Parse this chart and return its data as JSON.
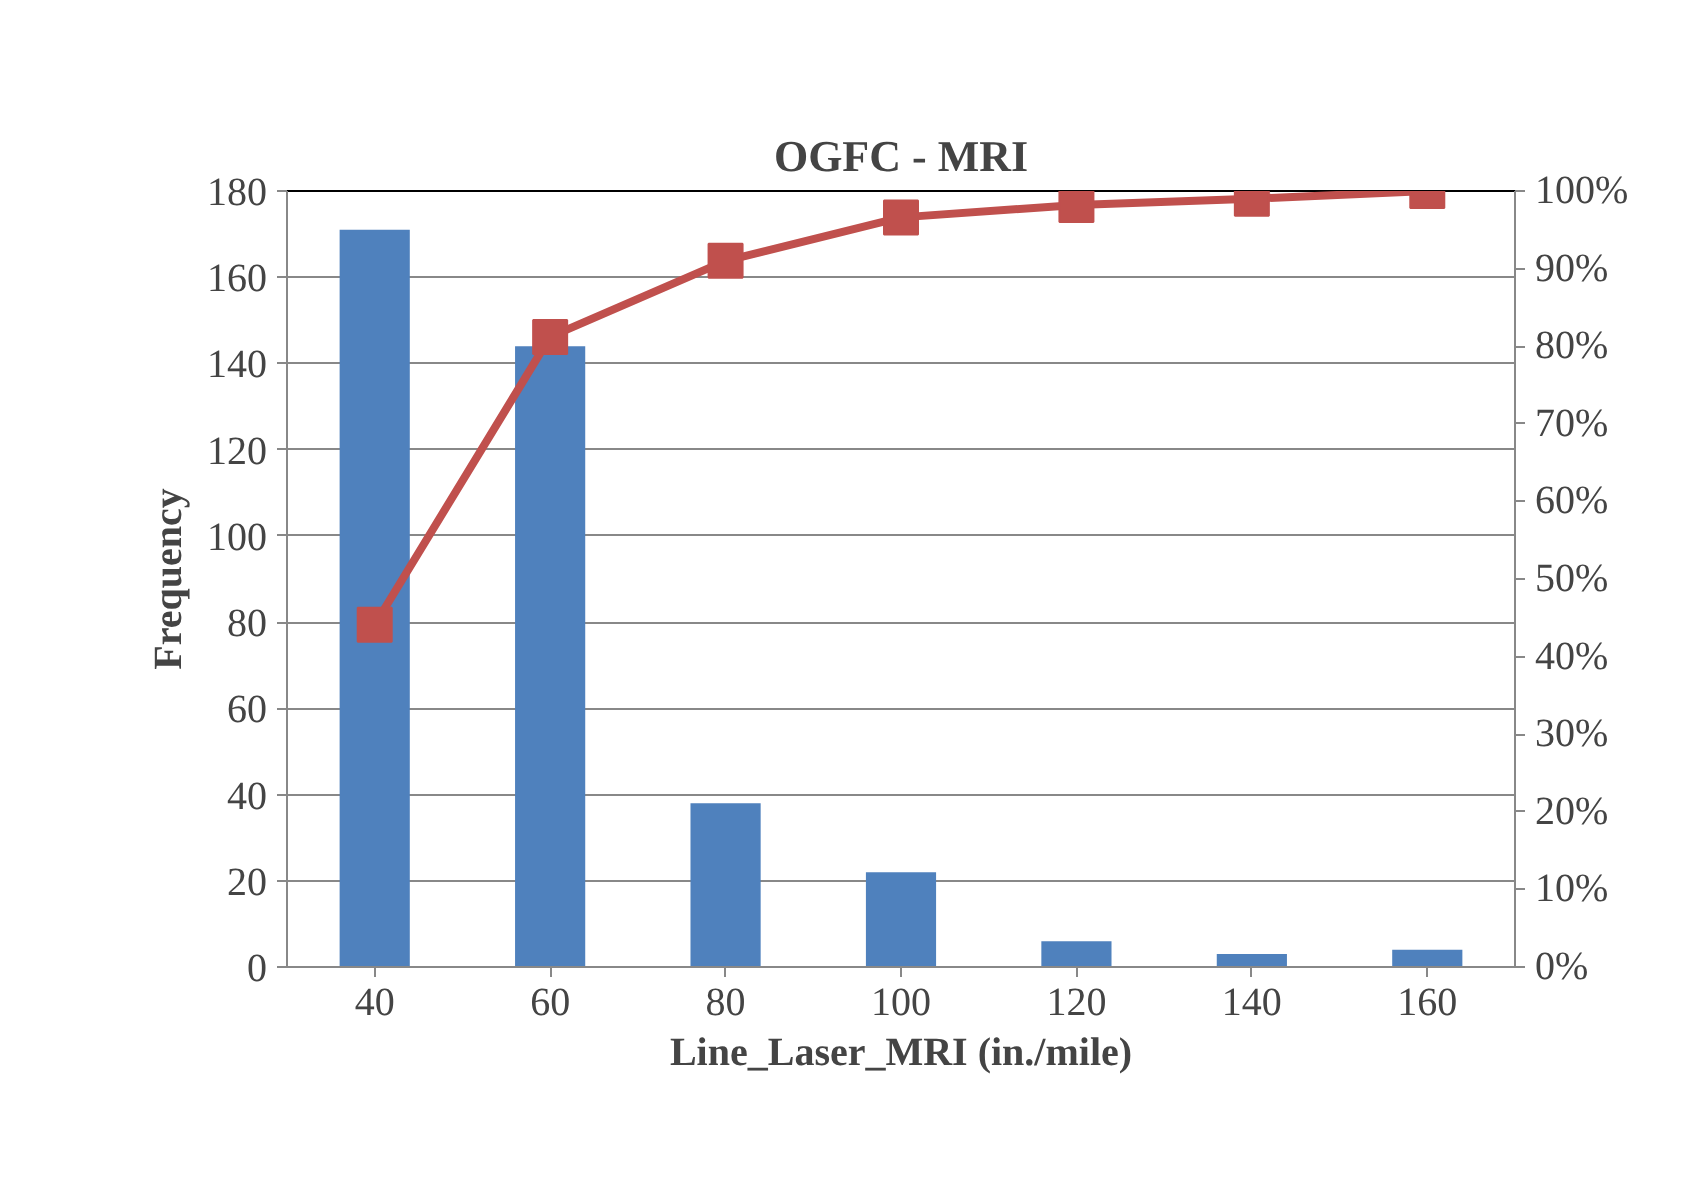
{
  "chart_data": {
    "type": "bar",
    "title": "OGFC - MRI",
    "xlabel": "Line_Laser_MRI (in./mile)",
    "ylabel": "Frequency",
    "categories": [
      "40",
      "60",
      "80",
      "100",
      "120",
      "140",
      "160"
    ],
    "series": [
      {
        "color": "#4f81bd",
        "values": [
          171,
          144,
          38,
          22,
          6,
          3,
          4
        ]
      },
      {
        "type": "line",
        "axis": "y2",
        "color": "#c0504d",
        "marker": "square",
        "values": [
          44.1,
          81.2,
          91.0,
          96.6,
          98.2,
          99.0,
          100
        ]
      }
    ],
    "ylim": [
      0,
      180
    ],
    "yticks": [
      0,
      20,
      40,
      60,
      80,
      100,
      120,
      140,
      160,
      180
    ],
    "y2lim": [
      0,
      100
    ],
    "y2ticks": [
      {
        "value": 0,
        "label": "0%"
      },
      {
        "value": 10,
        "label": "10%"
      },
      {
        "value": 20,
        "label": "20%"
      },
      {
        "value": 30,
        "label": "30%"
      },
      {
        "value": 40,
        "label": "40%"
      },
      {
        "value": 50,
        "label": "50%"
      },
      {
        "value": 60,
        "label": "60%"
      },
      {
        "value": 70,
        "label": "70%"
      },
      {
        "value": 80,
        "label": "80%"
      },
      {
        "value": 90,
        "label": "90%"
      },
      {
        "value": 100,
        "label": "100%"
      }
    ],
    "grid": "y"
  }
}
